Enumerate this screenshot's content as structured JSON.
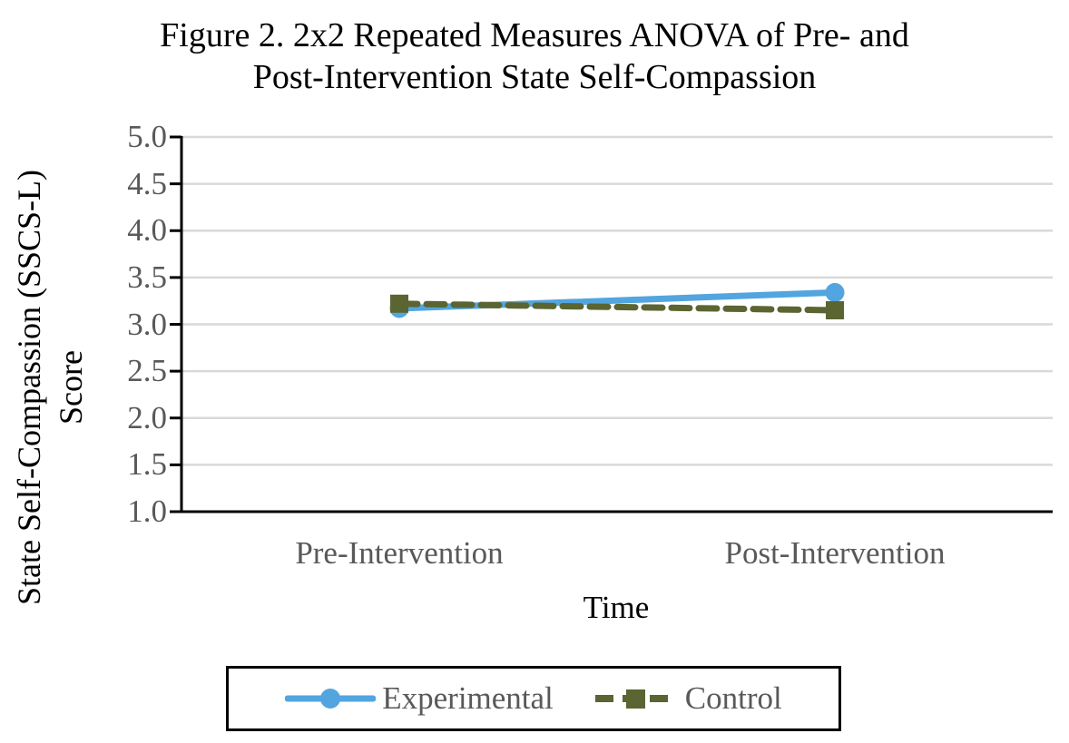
{
  "title_lines": [
    "Figure 2. 2x2 Repeated Measures ANOVA of Pre- and",
    "Post-Intervention State Self-Compassion"
  ],
  "chart_data": {
    "type": "line",
    "title": "Figure 2. 2x2 Repeated Measures ANOVA of Pre- and Post-Intervention State Self-Compassion",
    "categories": [
      "Pre-Intervention",
      "Post-Intervention"
    ],
    "series": [
      {
        "name": "Experimental",
        "values": [
          3.17,
          3.34
        ],
        "color": "#52A5DF",
        "line_style": "solid",
        "marker": "circle"
      },
      {
        "name": "Control",
        "values": [
          3.22,
          3.15
        ],
        "color": "#5A6531",
        "line_style": "dashed",
        "marker": "square"
      }
    ],
    "xlabel": "Time",
    "ylabel": "State Self-Compassion (SSCS-L) Score",
    "ylabel_lines": [
      "State Self-Compassion (SSCS-L)",
      "Score"
    ],
    "ylim": [
      1.0,
      5.0
    ],
    "ytick_step": 0.5,
    "yticks": [
      "5.0",
      "4.5",
      "4.0",
      "3.5",
      "3.0",
      "2.5",
      "2.0",
      "1.5",
      "1.0"
    ],
    "grid": true,
    "legend_position": "bottom-boxed"
  },
  "colors": {
    "gridline": "#D9D9D9",
    "axis": "#000000",
    "tick_label": "#595959",
    "category_label": "#595959",
    "legend_text": "#595959",
    "title_text": "#000000"
  }
}
